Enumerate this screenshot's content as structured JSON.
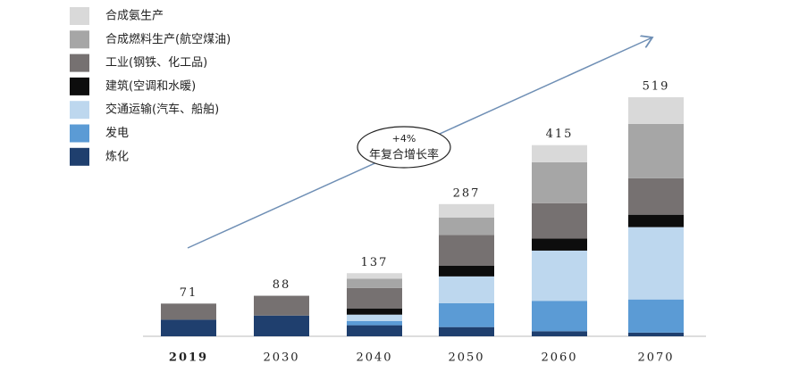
{
  "chart_data": {
    "type": "stacked_bar",
    "categories": [
      "2019",
      "2030",
      "2040",
      "2050",
      "2060",
      "2070"
    ],
    "totals": [
      71,
      88,
      137,
      287,
      415,
      519
    ],
    "series": [
      {
        "name": "炼化",
        "color": "#1f3f6e",
        "values": [
          36,
          45,
          24,
          20,
          11,
          8
        ]
      },
      {
        "name": "发电",
        "color": "#5b9bd5",
        "values": [
          0,
          0,
          9,
          52,
          66,
          72
        ]
      },
      {
        "name": "交通运输(汽车、船舶)",
        "color": "#bdd7ee",
        "values": [
          0,
          0,
          14,
          58,
          109,
          157
        ]
      },
      {
        "name": "建筑(空调和水暖)",
        "color": "#0d0d0d",
        "values": [
          0,
          0,
          13,
          23,
          26,
          27
        ]
      },
      {
        "name": "工业(钢铁、化工品)",
        "color": "#767171",
        "values": [
          35,
          43,
          45,
          67,
          77,
          79
        ]
      },
      {
        "name": "合成燃料生产(航空煤油)",
        "color": "#a6a6a6",
        "values": [
          0,
          0,
          20,
          38,
          89,
          118
        ]
      },
      {
        "name": "合成氨生产",
        "color": "#d9d9d9",
        "values": [
          0,
          0,
          12,
          29,
          37,
          58
        ]
      }
    ],
    "annotation": {
      "rate": "+4%",
      "label": "年复合增长率"
    }
  }
}
